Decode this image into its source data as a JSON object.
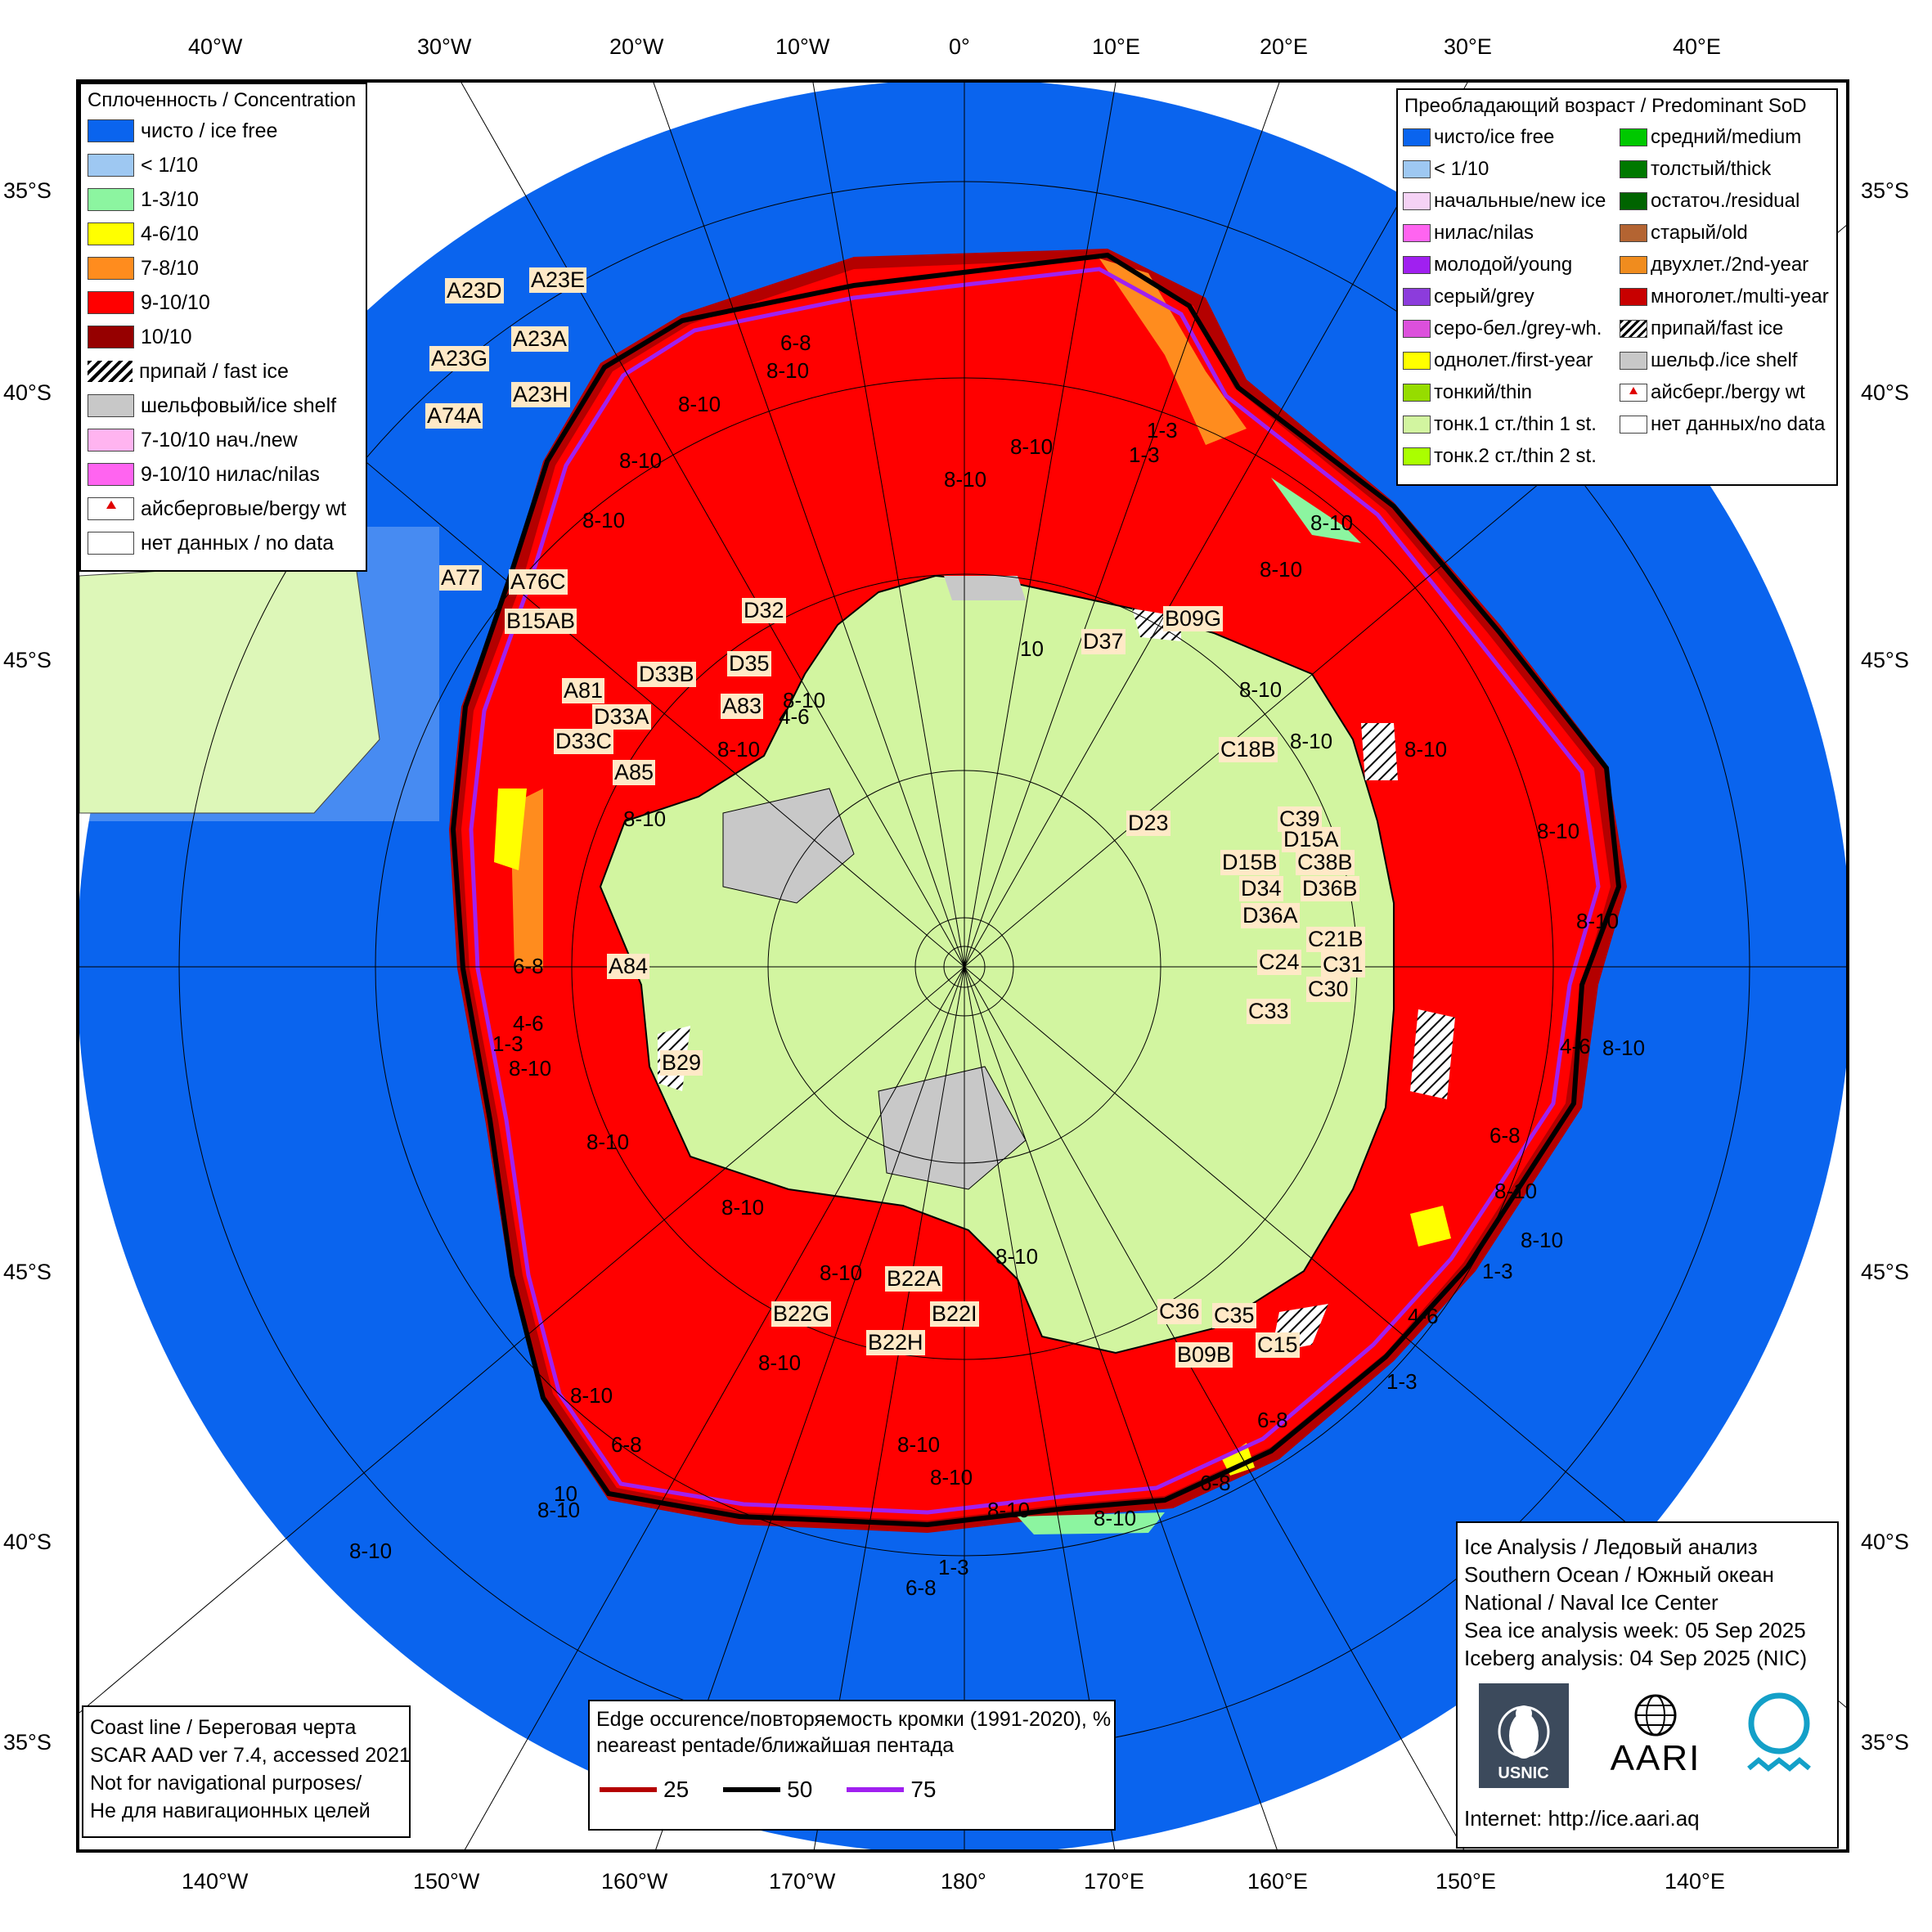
{
  "axes": {
    "top_lon": [
      "40°W",
      "30°W",
      "20°W",
      "10°W",
      "0°",
      "10°E",
      "20°E",
      "30°E",
      "40°E"
    ],
    "bottom_lon": [
      "140°W",
      "150°W",
      "160°W",
      "170°W",
      "180°",
      "170°E",
      "160°E",
      "150°E",
      "140°E"
    ],
    "left_lat": [
      "35°S",
      "40°S",
      "45°S",
      "45°S",
      "40°S",
      "35°S"
    ],
    "right_lat": [
      "35°S",
      "40°S",
      "45°S",
      "45°S",
      "40°S",
      "35°S"
    ]
  },
  "concentration_legend": {
    "title": "Сплоченность / Concentration",
    "items": [
      {
        "label": "чисто / ice free",
        "color": "#0a64ee"
      },
      {
        "label": "< 1/10",
        "color": "#9ec8f2"
      },
      {
        "label": "1-3/10",
        "color": "#8cf5a0"
      },
      {
        "label": "4-6/10",
        "color": "#ffff00"
      },
      {
        "label": "7-8/10",
        "color": "#ff8c1e"
      },
      {
        "label": "9-10/10",
        "color": "#ff0000"
      },
      {
        "label": "10/10",
        "color": "#960000"
      },
      {
        "label": "припай / fast ice",
        "color": "hatch"
      },
      {
        "label": "шельфовый/ice shelf",
        "color": "#c8c8c8"
      },
      {
        "label": "7-10/10 нач./new",
        "color": "#ffb4f0"
      },
      {
        "label": "9-10/10 нилас/nilas",
        "color": "#ff64f0"
      },
      {
        "label": "айсберговые/bergy wt",
        "color": "bergy"
      },
      {
        "label": "нет данных / no data",
        "color": "#ffffff"
      }
    ]
  },
  "sod_legend": {
    "title": "Преобладающий возраст / Predominant SoD",
    "left": [
      {
        "label": "чисто/ice free",
        "color": "#0a64ee"
      },
      {
        "label": "< 1/10",
        "color": "#9ec8f2"
      },
      {
        "label": "начальные/new ice",
        "color": "#f5d2f5"
      },
      {
        "label": "нилас/nilas",
        "color": "#ff64f0"
      },
      {
        "label": "молодой/young",
        "color": "#a020f0"
      },
      {
        "label": "серый/grey",
        "color": "#8c3cdc"
      },
      {
        "label": "серо-бел./grey-wh.",
        "color": "#dc50dc"
      },
      {
        "label": "однолет./first-year",
        "color": "#ffff00"
      },
      {
        "label": "тонкий/thin",
        "color": "#96dc00"
      },
      {
        "label": "тонк.1 ст./thin 1 st.",
        "color": "#d2f5a0"
      },
      {
        "label": "тонк.2 ст./thin 2 st.",
        "color": "#aaff00"
      }
    ],
    "right": [
      {
        "label": "средний/medium",
        "color": "#00c800"
      },
      {
        "label": "толстый/thick",
        "color": "#007800"
      },
      {
        "label": "остаточ./residual",
        "color": "#006400"
      },
      {
        "label": "старый/old",
        "color": "#b46432"
      },
      {
        "label": "двухлет./2nd-year",
        "color": "#f08c1e"
      },
      {
        "label": "многолет./multi-year",
        "color": "#c80000"
      },
      {
        "label": "припай/fast ice",
        "color": "hatch"
      },
      {
        "label": "шельф./ice shelf",
        "color": "#c8c8c8"
      },
      {
        "label": "айсберг./bergy wt",
        "color": "bergy"
      },
      {
        "label": "нет данных/no data",
        "color": "#ffffff"
      }
    ]
  },
  "info_box": {
    "lines": [
      "Ice Analysis / Ледовый анализ",
      "Southern Ocean / Южный океан",
      "National / Naval Ice Center",
      "Sea ice analysis week: 05 Sep 2025",
      "Iceberg analysis: 04 Sep 2025 (NIC)"
    ],
    "logo_usnic": "USNIC",
    "logo_aari": "AARI",
    "internet": "Internet: http://ice.aari.aq"
  },
  "coast_box": {
    "lines": [
      "Coast line / Береговая черта",
      "SCAR AAD ver 7.4, accessed 2021",
      "Not for navigational purposes/",
      "Не для навигационных целей"
    ]
  },
  "edge_box": {
    "title1": "Edge occurence/повторяемость кромки (1991-2020), %",
    "title2": "neareast pentade/ближайшая пентада",
    "items": [
      {
        "label": "25",
        "color": "#b40000"
      },
      {
        "label": "50",
        "color": "#000000"
      },
      {
        "label": "75",
        "color": "#a020f0"
      }
    ]
  },
  "icebergs": [
    "A23D",
    "A23E",
    "A23A",
    "A23G",
    "A23H",
    "A74A",
    "A77",
    "A76C",
    "B15AB",
    "D32",
    "D35",
    "D33B",
    "A81",
    "A83",
    "D33A",
    "D33C",
    "A85",
    "B09G",
    "D37",
    "C18B",
    "D23",
    "C39",
    "D15A",
    "D15B",
    "C38B",
    "D34",
    "D36B",
    "D36A",
    "C21B",
    "C24",
    "C31",
    "C30",
    "C33",
    "A84",
    "B29",
    "B22A",
    "B22G",
    "B22I",
    "B22H",
    "C36",
    "C35",
    "B09B",
    "C15"
  ],
  "concentration_labels": [
    "8-10",
    "6-8",
    "1-3",
    "4-6",
    "10"
  ]
}
